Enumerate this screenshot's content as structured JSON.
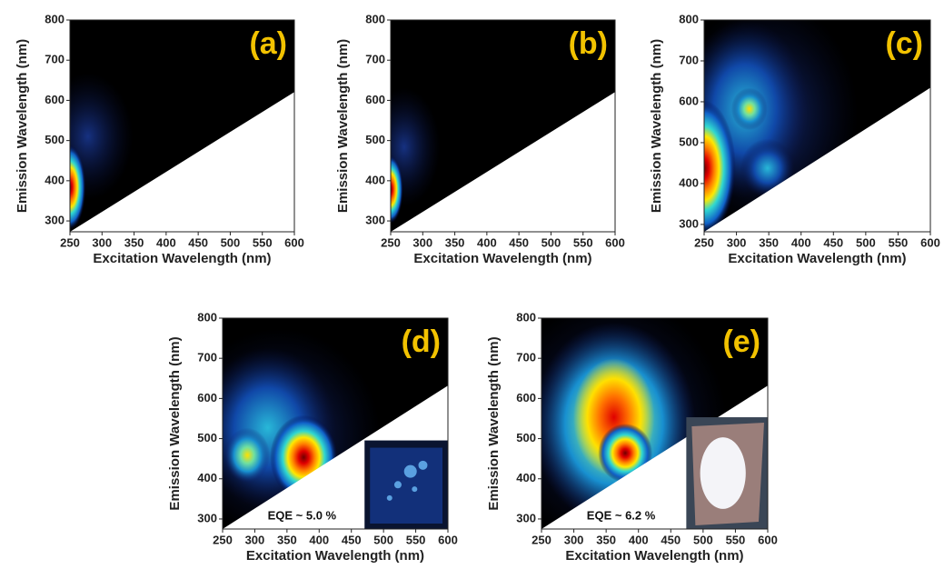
{
  "chart_data": [
    {
      "type": "heatmap",
      "label": "(a)",
      "xlabel": "Excitation Wavelength (nm)",
      "ylabel": "Emission Wavelength (nm)",
      "xlim": [
        250,
        600
      ],
      "ylim": [
        273,
        800
      ],
      "xticks": [
        250,
        300,
        350,
        400,
        450,
        500,
        550,
        600
      ],
      "yticks": [
        300,
        400,
        500,
        600,
        700,
        800
      ]
    },
    {
      "type": "heatmap",
      "label": "(b)",
      "xlabel": "Excitation Wavelength (nm)",
      "ylabel": "Emission Wavelength (nm)",
      "xlim": [
        250,
        600
      ],
      "ylim": [
        273,
        800
      ],
      "xticks": [
        250,
        300,
        350,
        400,
        450,
        500,
        550,
        600
      ],
      "yticks": [
        300,
        400,
        500,
        600,
        700,
        800
      ]
    },
    {
      "type": "heatmap",
      "label": "(c)",
      "xlabel": "Excitation Wavelength (nm)",
      "ylabel": "Emission Wavelength (nm)",
      "xlim": [
        250,
        600
      ],
      "ylim": [
        282,
        800
      ],
      "xticks": [
        250,
        300,
        350,
        400,
        450,
        500,
        550,
        600
      ],
      "yticks": [
        300,
        400,
        500,
        600,
        700,
        800
      ]
    },
    {
      "type": "heatmap",
      "label": "(d)",
      "annotation": "EQE ~ 5.0 %",
      "xlabel": "Excitation Wavelength (nm)",
      "ylabel": "Emission Wavelength (nm)",
      "xlim": [
        250,
        600
      ],
      "ylim": [
        275,
        800
      ],
      "xticks": [
        250,
        300,
        350,
        400,
        450,
        500,
        550,
        600
      ],
      "yticks": [
        300,
        400,
        500,
        600,
        700,
        800
      ]
    },
    {
      "type": "heatmap",
      "label": "(e)",
      "annotation": "EQE ~ 6.2 %",
      "xlabel": "Excitation Wavelength (nm)",
      "ylabel": "Emission Wavelength (nm)",
      "xlim": [
        250,
        600
      ],
      "ylim": [
        275,
        800
      ],
      "xticks": [
        250,
        300,
        350,
        400,
        450,
        500,
        550,
        600
      ],
      "yticks": [
        300,
        400,
        500,
        600,
        700,
        800
      ]
    }
  ]
}
